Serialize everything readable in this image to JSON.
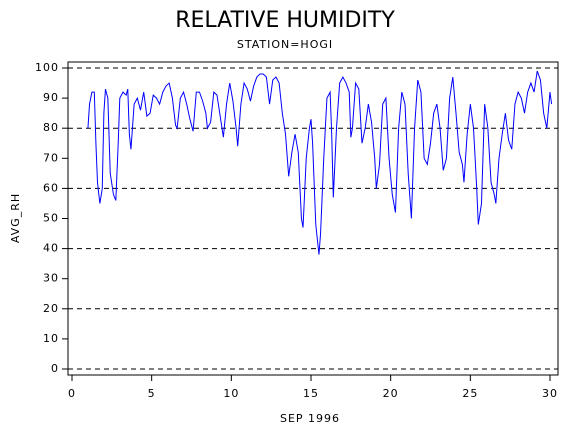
{
  "chart_data": {
    "type": "line",
    "title": "RELATIVE HUMIDITY",
    "subtitle": "STATION=HOGI",
    "xlabel": "SEP 1996",
    "ylabel": "AVG_RH",
    "x": [
      1.0,
      1.1,
      1.25,
      1.4,
      1.5,
      1.6,
      1.75,
      1.9,
      2.0,
      2.1,
      2.25,
      2.4,
      2.6,
      2.75,
      2.9,
      3.0,
      3.2,
      3.4,
      3.5,
      3.6,
      3.7,
      3.9,
      4.1,
      4.3,
      4.5,
      4.7,
      4.9,
      5.1,
      5.3,
      5.5,
      5.7,
      5.9,
      6.1,
      6.3,
      6.5,
      6.6,
      6.8,
      7.0,
      7.2,
      7.4,
      7.6,
      7.8,
      8.0,
      8.2,
      8.4,
      8.5,
      8.7,
      8.9,
      9.1,
      9.3,
      9.5,
      9.7,
      9.9,
      10.1,
      10.3,
      10.4,
      10.6,
      10.8,
      11.0,
      11.2,
      11.4,
      11.6,
      11.8,
      12.0,
      12.2,
      12.4,
      12.6,
      12.8,
      13.0,
      13.2,
      13.4,
      13.6,
      13.8,
      14.0,
      14.2,
      14.4,
      14.5,
      14.7,
      14.9,
      15.0,
      15.1,
      15.3,
      15.5,
      15.6,
      15.8,
      16.0,
      16.2,
      16.3,
      16.4,
      16.6,
      16.8,
      17.0,
      17.2,
      17.4,
      17.5,
      17.6,
      17.8,
      18.0,
      18.2,
      18.4,
      18.6,
      18.8,
      19.0,
      19.1,
      19.3,
      19.5,
      19.7,
      19.9,
      20.1,
      20.3,
      20.5,
      20.7,
      20.9,
      21.1,
      21.3,
      21.5,
      21.7,
      21.9,
      22.1,
      22.3,
      22.5,
      22.7,
      22.9,
      23.1,
      23.3,
      23.5,
      23.7,
      23.9,
      24.1,
      24.3,
      24.5,
      24.6,
      24.8,
      25.0,
      25.2,
      25.4,
      25.5,
      25.7,
      25.9,
      26.1,
      26.3,
      26.5,
      26.6,
      26.8,
      27.0,
      27.2,
      27.4,
      27.6,
      27.8,
      28.0,
      28.2,
      28.4,
      28.6,
      28.8,
      29.0,
      29.2,
      29.4,
      29.6,
      29.8,
      30.0,
      30.1
    ],
    "series": [
      {
        "name": "AVG_RH",
        "color": "#0000ff",
        "values": [
          80,
          88,
          92,
          92,
          75,
          62,
          55,
          60,
          85,
          93,
          90,
          65,
          58,
          56,
          75,
          90,
          92,
          91,
          93,
          78,
          73,
          88,
          90,
          86,
          92,
          84,
          85,
          91,
          90,
          88,
          92,
          94,
          95,
          90,
          81,
          80,
          90,
          92,
          88,
          83,
          79,
          92,
          92,
          89,
          85,
          80,
          82,
          92,
          91,
          84,
          77,
          88,
          95,
          89,
          80,
          74,
          88,
          95,
          93,
          89,
          94,
          97,
          98,
          98,
          97,
          88,
          96,
          97,
          95,
          85,
          78,
          64,
          72,
          78,
          72,
          50,
          47,
          70,
          80,
          83,
          75,
          48,
          38,
          45,
          70,
          90,
          92,
          78,
          57,
          80,
          95,
          97,
          95,
          92,
          77,
          80,
          95,
          93,
          75,
          80,
          88,
          82,
          70,
          60,
          68,
          88,
          90,
          70,
          58,
          52,
          80,
          92,
          88,
          65,
          50,
          80,
          96,
          92,
          70,
          68,
          75,
          85,
          88,
          80,
          66,
          70,
          90,
          97,
          85,
          72,
          68,
          62,
          78,
          88,
          80,
          60,
          48,
          55,
          88,
          80,
          62,
          58,
          55,
          70,
          78,
          85,
          76,
          73,
          88,
          92,
          90,
          85,
          92,
          95,
          92,
          99,
          96,
          85,
          80,
          92,
          88
        ]
      }
    ],
    "xlim": [
      0,
      30
    ],
    "xticks": [
      0,
      5,
      10,
      15,
      20,
      25,
      30
    ],
    "ylim": [
      0,
      100
    ],
    "yticks": [
      0,
      10,
      20,
      30,
      40,
      50,
      60,
      70,
      80,
      90,
      100
    ],
    "grid_lines": [
      0,
      20,
      40,
      60,
      80,
      100
    ]
  }
}
